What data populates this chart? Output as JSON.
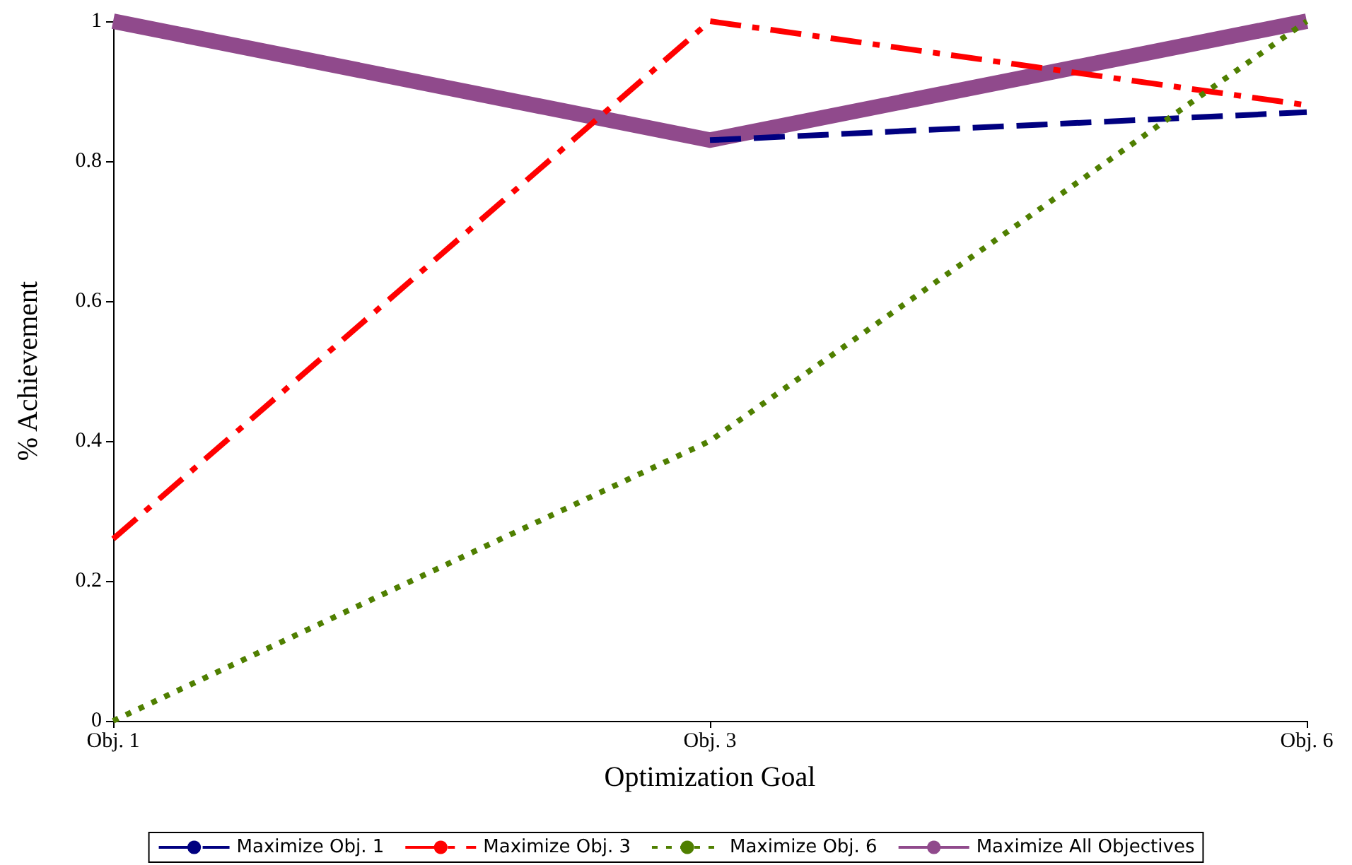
{
  "chart_data": {
    "type": "line",
    "xlabel": "Optimization Goal",
    "ylabel": "% Achievement",
    "categories": [
      "Obj. 1",
      "Obj. 3",
      "Obj. 6"
    ],
    "ylim": [
      0,
      1
    ],
    "yticks": [
      0,
      0.2,
      0.4,
      0.6,
      0.8,
      1
    ],
    "grid": false,
    "legend": "bottom",
    "marker": "none",
    "series": [
      {
        "name": "Maximize Obj. 1",
        "color": "#000080",
        "line_style": "dashed",
        "values": [
          null,
          0.83,
          0.87
        ]
      },
      {
        "name": "Maximize Obj. 3",
        "color": "#ff0000",
        "line_style": "dashdot",
        "values": [
          0.26,
          1,
          0.88
        ]
      },
      {
        "name": "Maximize Obj. 6",
        "color": "#4f7f00",
        "line_style": "dotted",
        "values": [
          0,
          0.4,
          1
        ]
      },
      {
        "name": "Maximize All Objectives",
        "color": "#904a8c",
        "line_style": "solid",
        "values": [
          1,
          0.83,
          1
        ]
      }
    ]
  }
}
